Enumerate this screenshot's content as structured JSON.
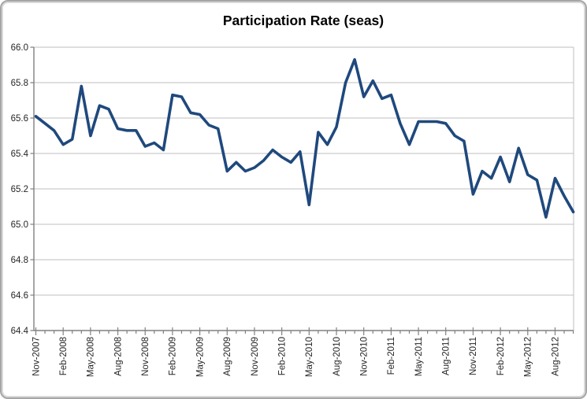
{
  "title": "Participation Rate (seas)",
  "chart_data": {
    "type": "line",
    "title": "Participation Rate (seas)",
    "series_name": "Participation Rate (seasonally adjusted)",
    "x": [
      "Nov-2007",
      "Dec-2007",
      "Jan-2008",
      "Feb-2008",
      "Mar-2008",
      "Apr-2008",
      "May-2008",
      "Jun-2008",
      "Jul-2008",
      "Aug-2008",
      "Sep-2008",
      "Oct-2008",
      "Nov-2008",
      "Dec-2008",
      "Jan-2009",
      "Feb-2009",
      "Mar-2009",
      "Apr-2009",
      "May-2009",
      "Jun-2009",
      "Jul-2009",
      "Aug-2009",
      "Sep-2009",
      "Oct-2009",
      "Nov-2009",
      "Dec-2009",
      "Jan-2010",
      "Feb-2010",
      "Mar-2010",
      "Apr-2010",
      "May-2010",
      "Jun-2010",
      "Jul-2010",
      "Aug-2010",
      "Sep-2010",
      "Oct-2010",
      "Nov-2010",
      "Dec-2010",
      "Jan-2011",
      "Feb-2011",
      "Mar-2011",
      "Apr-2011",
      "May-2011",
      "Jun-2011",
      "Jul-2011",
      "Aug-2011",
      "Sep-2011",
      "Oct-2011",
      "Nov-2011",
      "Dec-2011",
      "Jan-2012",
      "Feb-2012",
      "Mar-2012",
      "Apr-2012",
      "May-2012",
      "Jun-2012",
      "Jul-2012",
      "Aug-2012",
      "Sep-2012",
      "Oct-2012"
    ],
    "values": [
      65.61,
      65.57,
      65.53,
      65.45,
      65.48,
      65.78,
      65.5,
      65.67,
      65.65,
      65.54,
      65.53,
      65.53,
      65.44,
      65.46,
      65.42,
      65.73,
      65.72,
      65.63,
      65.62,
      65.56,
      65.54,
      65.3,
      65.35,
      65.3,
      65.32,
      65.36,
      65.42,
      65.38,
      65.35,
      65.41,
      65.11,
      65.52,
      65.45,
      65.55,
      65.8,
      65.93,
      65.72,
      65.81,
      65.71,
      65.73,
      65.57,
      65.45,
      65.58,
      65.58,
      65.58,
      65.57,
      65.5,
      65.47,
      65.17,
      65.3,
      65.26,
      65.38,
      65.24,
      65.43,
      65.28,
      65.25,
      65.04,
      65.26,
      65.16,
      65.07
    ],
    "x_tick_every": 3,
    "x_tick_labels_shown": [
      "Nov-2007",
      "Feb-2008",
      "May-2008",
      "Aug-2008",
      "Nov-2008",
      "Feb-2009",
      "May-2009",
      "Aug-2009",
      "Nov-2009",
      "Feb-2010",
      "May-2010",
      "Aug-2010",
      "Nov-2010",
      "Feb-2011",
      "May-2011",
      "Aug-2011",
      "Nov-2011",
      "Feb-2012",
      "May-2012",
      "Aug-2012"
    ],
    "ylim": [
      64.4,
      66.0
    ],
    "y_ticks": [
      64.4,
      64.6,
      64.8,
      65.0,
      65.2,
      65.4,
      65.6,
      65.8,
      66.0
    ],
    "grid": true,
    "legend": "none"
  },
  "colors": {
    "line": "#1F497D",
    "gridline": "#BFBFBF",
    "axis": "#808080",
    "tick": "#808080",
    "tick_text": "#262626",
    "title_text": "#000000",
    "frame_border": "#A6A6A6",
    "frame_inner": "#D9D9D9",
    "background": "#FFFFFF"
  }
}
